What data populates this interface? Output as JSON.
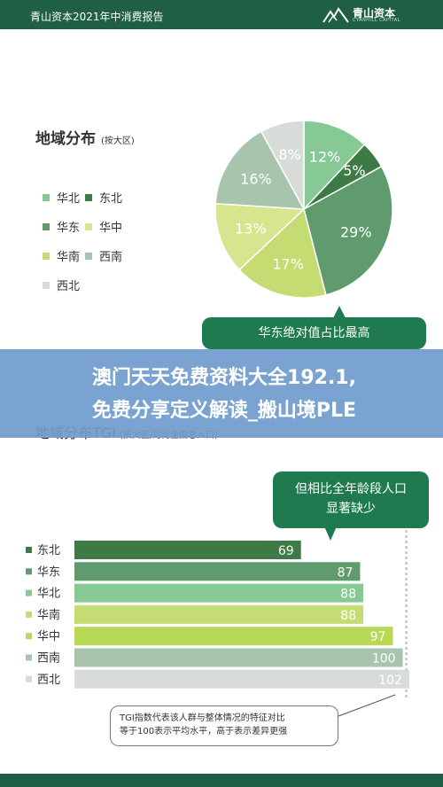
{
  "header": {
    "title": "青山资本2021年中消费报告",
    "brand_name": "青山资本",
    "brand_sub": "CYANHILL CAPITAL"
  },
  "overlay": {
    "line1": "澳门天天免费资料大全192.1,",
    "line2": "免费分享定义解读_搬山境PLE"
  },
  "colors": {
    "header_bg": "#1f5f45",
    "callout_bg": "#1f7a50"
  },
  "chart_data": [
    {
      "type": "pie",
      "title": "地域分布",
      "subtitle": "(按大区)",
      "slices": [
        {
          "name": "华北",
          "value": 12,
          "label": "12%",
          "color": "#86c995"
        },
        {
          "name": "东北",
          "value": 5,
          "label": "5%",
          "color": "#3d7a45"
        },
        {
          "name": "华东",
          "value": 29,
          "label": "29%",
          "color": "#5f9b6d"
        },
        {
          "name": "华南",
          "value": 17,
          "label": "17%",
          "color": "#c4dc72"
        },
        {
          "name": "华中",
          "value": 13,
          "label": "13%",
          "color": "#d6e58e"
        },
        {
          "name": "西南",
          "value": 16,
          "label": "16%",
          "color": "#a9c4ad"
        },
        {
          "name": "西北",
          "value": 8,
          "label": "8%",
          "color": "#d7dcd9"
        }
      ],
      "legend": [
        {
          "name": "华北",
          "color": "#86c995"
        },
        {
          "name": "东北",
          "color": "#3d7a45"
        },
        {
          "name": "华东",
          "color": "#5f9b6d"
        },
        {
          "name": "华中",
          "color": "#d6e58e"
        },
        {
          "name": "华南",
          "color": "#c4dc72"
        },
        {
          "name": "西南",
          "color": "#a9c4ad"
        },
        {
          "name": "西北",
          "color": "#d7dcd9"
        }
      ],
      "callout": "华东绝对值占比最高"
    },
    {
      "type": "bar",
      "orientation": "horizontal",
      "title": "地域分布TGI",
      "subtitle": "(按大区/对比全国总人口)",
      "categories": [
        "东北",
        "华东",
        "华北",
        "华南",
        "华中",
        "西南",
        "西北"
      ],
      "values": [
        69,
        87,
        88,
        88,
        97,
        100,
        102
      ],
      "colors": [
        "#3d7a45",
        "#5f9b6d",
        "#86c995",
        "#c4dc72",
        "#b8d955",
        "#a9c4ad",
        "#d7dcd9"
      ],
      "xlim": [
        0,
        102
      ],
      "reference_line": 100,
      "callout": [
        "但相比全年龄段人口",
        "显著缺少"
      ],
      "note": [
        "TGI指数代表该人群与整体情况的特征对比",
        "等于100表示平均水平，高于表示差异更强"
      ]
    }
  ]
}
